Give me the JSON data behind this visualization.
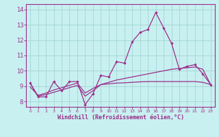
{
  "hours": [
    0,
    1,
    2,
    3,
    4,
    5,
    6,
    7,
    8,
    9,
    10,
    11,
    12,
    13,
    14,
    15,
    16,
    17,
    18,
    19,
    20,
    21,
    22,
    23
  ],
  "windchill": [
    9.2,
    8.3,
    8.3,
    9.3,
    8.7,
    9.3,
    9.3,
    7.8,
    8.5,
    9.7,
    9.6,
    10.6,
    10.5,
    11.9,
    12.5,
    12.7,
    13.8,
    12.8,
    11.8,
    10.1,
    10.3,
    10.4,
    9.8,
    9.1
  ],
  "line2": [
    9.2,
    8.35,
    8.45,
    8.6,
    8.75,
    8.9,
    9.05,
    8.35,
    8.7,
    9.1,
    9.15,
    9.2,
    9.22,
    9.25,
    9.28,
    9.3,
    9.3,
    9.3,
    9.3,
    9.3,
    9.3,
    9.3,
    9.25,
    9.1
  ],
  "line3": [
    8.95,
    8.4,
    8.55,
    8.75,
    8.9,
    9.05,
    9.2,
    8.55,
    8.85,
    9.1,
    9.25,
    9.4,
    9.5,
    9.6,
    9.7,
    9.8,
    9.9,
    10.0,
    10.1,
    10.15,
    10.2,
    10.25,
    10.1,
    9.1
  ],
  "xlabel": "Windchill (Refroidissement éolien,°C)",
  "ylim": [
    7.65,
    14.35
  ],
  "xlim": [
    -0.5,
    23.5
  ],
  "line_color": "#9b2d8a",
  "bg_color": "#c8f0f0",
  "grid_color": "#a8d8d8",
  "yticks": [
    8,
    9,
    10,
    11,
    12,
    13,
    14
  ]
}
